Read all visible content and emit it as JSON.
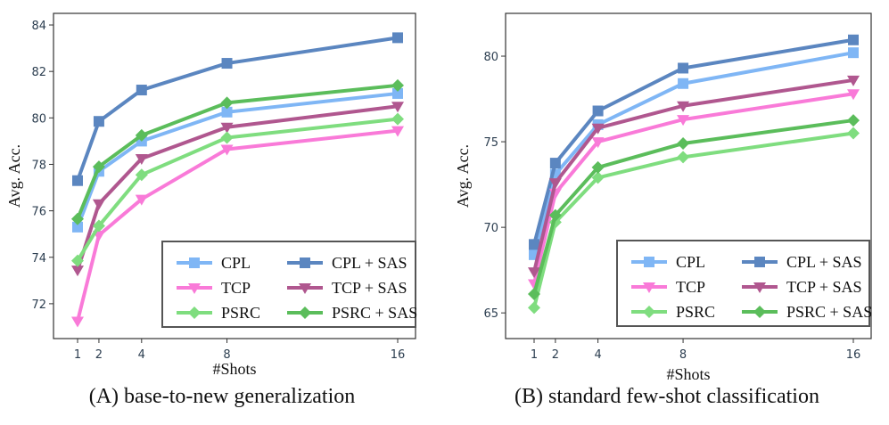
{
  "chart_data": [
    {
      "type": "line",
      "caption": "(A) base-to-new generalization",
      "xlabel": "#Shots",
      "ylabel": "Avg. Acc.",
      "x": [
        1,
        2,
        4,
        8,
        16
      ],
      "xticks": [
        "1",
        "2",
        "4",
        "8",
        "16"
      ],
      "yticks": [
        "72",
        "74",
        "76",
        "78",
        "80",
        "82",
        "84"
      ],
      "ylim": [
        70.5,
        84.5
      ],
      "series": [
        {
          "name": "CPL",
          "values": [
            75.3,
            77.7,
            79.0,
            80.25,
            81.05
          ],
          "color": "#7fb6f5",
          "marker": "square"
        },
        {
          "name": "CPL + SAS",
          "values": [
            77.3,
            79.85,
            81.2,
            82.35,
            83.45
          ],
          "color": "#5b86c0",
          "marker": "square"
        },
        {
          "name": "TCP",
          "values": [
            71.25,
            74.95,
            76.5,
            78.65,
            79.45
          ],
          "color": "#f97ad8",
          "marker": "triangle"
        },
        {
          "name": "TCP + SAS",
          "values": [
            73.45,
            76.3,
            78.25,
            79.6,
            80.5
          ],
          "color": "#b0578f",
          "marker": "triangle"
        },
        {
          "name": "PSRC",
          "values": [
            73.85,
            75.35,
            77.55,
            79.15,
            79.95
          ],
          "color": "#7fdd7f",
          "marker": "diamond"
        },
        {
          "name": "PSRC + SAS",
          "values": [
            75.65,
            77.9,
            79.25,
            80.65,
            81.4
          ],
          "color": "#5bbd5b",
          "marker": "diamond"
        }
      ],
      "legend_position": "bottom-right"
    },
    {
      "type": "line",
      "caption": "(B) standard few-shot classification",
      "xlabel": "#Shots",
      "ylabel": "Avg. Acc.",
      "x": [
        1,
        2,
        4,
        8,
        16
      ],
      "xticks": [
        "1",
        "2",
        "4",
        "8",
        "16"
      ],
      "yticks": [
        "65",
        "70",
        "75",
        "80"
      ],
      "ylim": [
        63.5,
        82.5
      ],
      "series": [
        {
          "name": "CPL",
          "values": [
            68.4,
            73.1,
            76.0,
            78.4,
            80.2
          ],
          "color": "#7fb6f5",
          "marker": "square"
        },
        {
          "name": "CPL + SAS",
          "values": [
            69.0,
            73.75,
            76.8,
            79.3,
            80.95
          ],
          "color": "#5b86c0",
          "marker": "square"
        },
        {
          "name": "TCP",
          "values": [
            66.7,
            72.0,
            75.0,
            76.3,
            77.8
          ],
          "color": "#f97ad8",
          "marker": "triangle"
        },
        {
          "name": "TCP + SAS",
          "values": [
            67.4,
            72.6,
            75.8,
            77.1,
            78.6
          ],
          "color": "#b0578f",
          "marker": "triangle"
        },
        {
          "name": "PSRC",
          "values": [
            65.3,
            70.3,
            72.9,
            74.1,
            75.5
          ],
          "color": "#7fdd7f",
          "marker": "diamond"
        },
        {
          "name": "PSRC + SAS",
          "values": [
            66.1,
            70.7,
            73.5,
            74.9,
            76.25
          ],
          "color": "#5bbd5b",
          "marker": "diamond"
        }
      ],
      "legend_position": "bottom-right"
    }
  ]
}
